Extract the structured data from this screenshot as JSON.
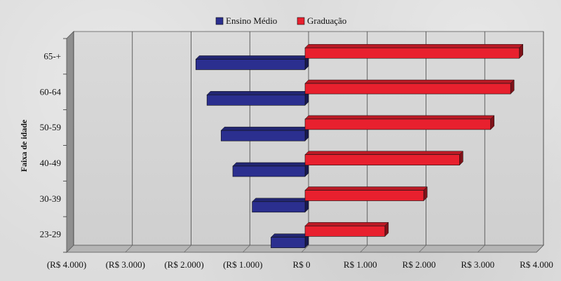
{
  "chart_data": {
    "type": "bar",
    "orientation": "horizontal",
    "ylabel": "Faixa de idade",
    "categories": [
      "23-29",
      "30-39",
      "40-49",
      "50-59",
      "60-64",
      "65-+"
    ],
    "series": [
      {
        "name": "Ensino Médio",
        "color": "#2b2f8f",
        "values": [
          -580,
          -900,
          -1230,
          -1430,
          -1670,
          -1860
        ]
      },
      {
        "name": "Graduação",
        "color": "#e8202e",
        "values": [
          1360,
          2020,
          2630,
          3160,
          3500,
          3650
        ]
      }
    ],
    "x_ticks": [
      "(R$ 4.000)",
      "(R$ 3.000)",
      "(R$ 2.000)",
      "(R$ 1.000)",
      "R$ 0",
      "R$ 1.000",
      "R$ 2.000",
      "R$ 3.000",
      "R$ 4.000"
    ],
    "xlim": [
      -4000,
      4000
    ],
    "legend_position": "top-center",
    "grid": "vertical"
  }
}
